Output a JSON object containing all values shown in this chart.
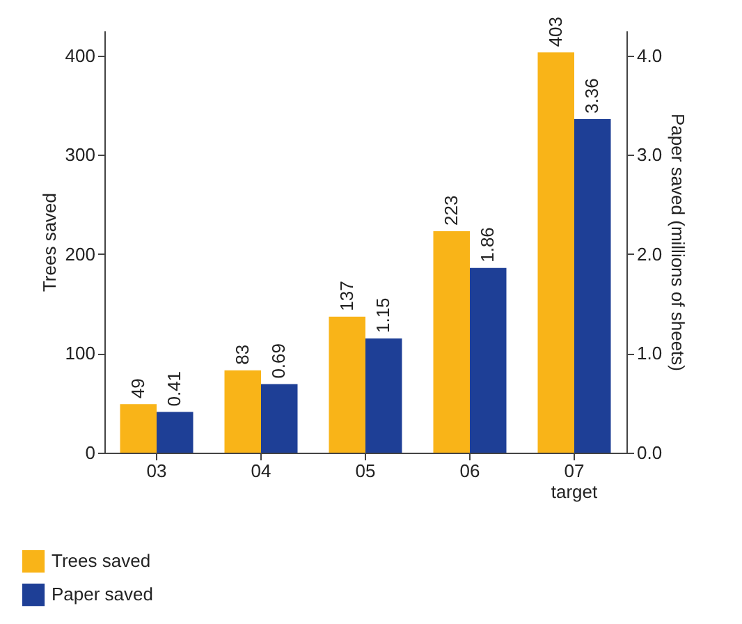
{
  "chart_data": {
    "type": "bar",
    "categories": [
      "03",
      "04",
      "05",
      "06",
      "07\ntarget"
    ],
    "series": [
      {
        "name": "Trees saved",
        "color": "#f9b418",
        "values": [
          49,
          83,
          137,
          223,
          403
        ]
      },
      {
        "name": "Paper saved",
        "color": "#1e3f96",
        "values": [
          0.41,
          0.69,
          1.15,
          1.86,
          3.36
        ],
        "axis": "y2"
      }
    ],
    "ylabel": "Trees saved",
    "y2label": "Paper saved (millions of sheets)",
    "ylim": [
      0,
      425
    ],
    "yticks": [
      0,
      100,
      200,
      300,
      400
    ],
    "y2lim": [
      0,
      4.25
    ],
    "y2ticks": [
      {
        "value": 0,
        "label": "0.0"
      },
      {
        "value": 1,
        "label": "1.0"
      },
      {
        "value": 2,
        "label": "2.0"
      },
      {
        "value": 3,
        "label": "3.0"
      },
      {
        "value": 4,
        "label": "4.0"
      }
    ],
    "data_labels": true,
    "legend": "bottom left",
    "grid": false
  }
}
